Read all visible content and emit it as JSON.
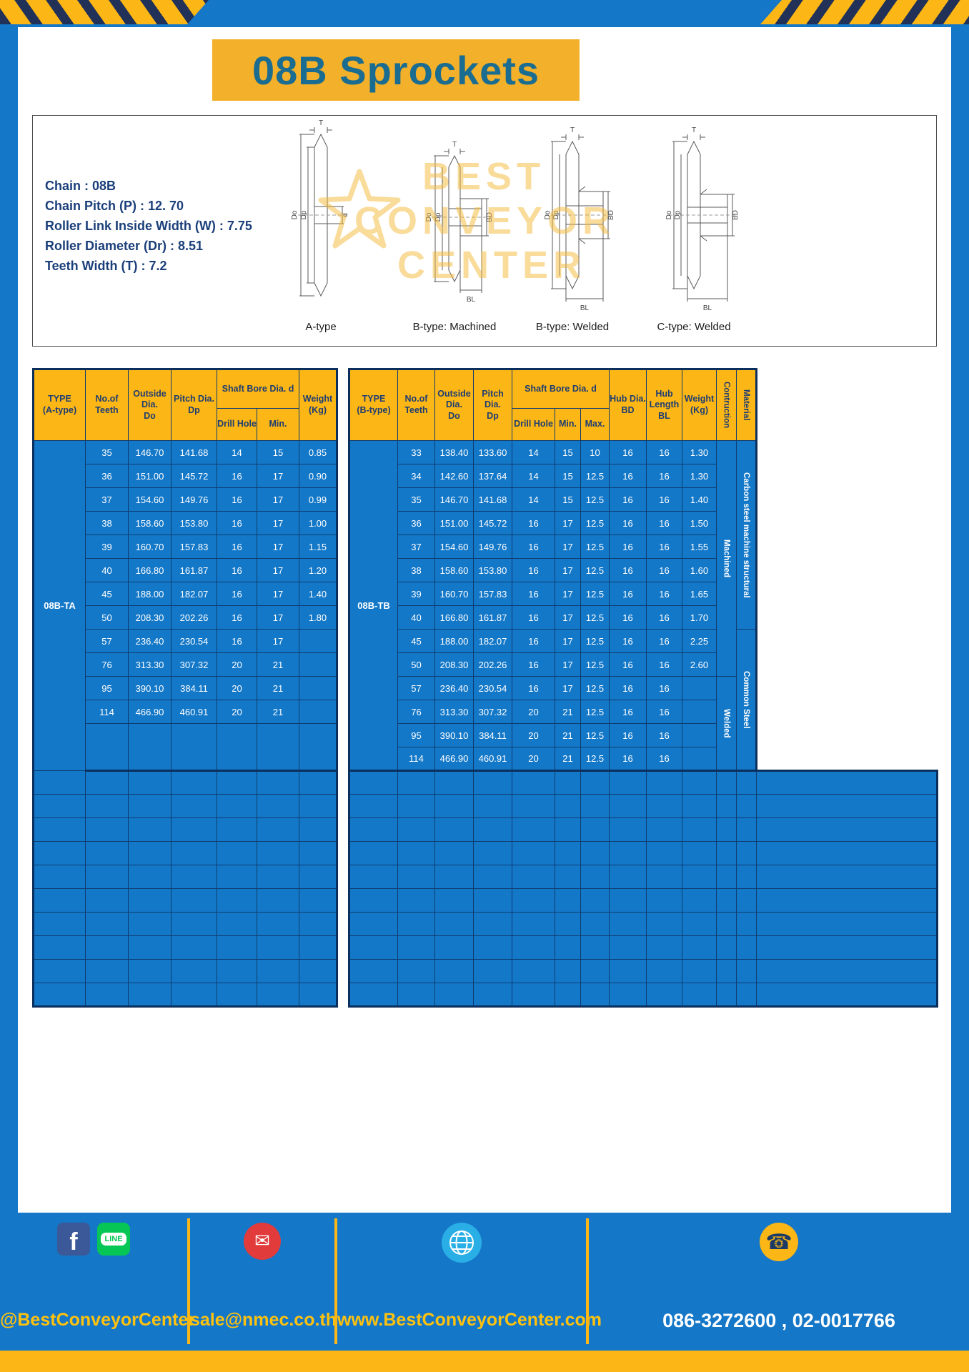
{
  "page": {
    "title": "08B Sprockets"
  },
  "colors": {
    "frame_blue": "#1577c8",
    "table_blue": "#1478c8",
    "yellow": "#fcb615",
    "banner_yellow": "#f3b02a",
    "navy_text": "#1b3f7a",
    "title_teal": "#1a6c90"
  },
  "specs": {
    "lines": [
      "Chain : 08B",
      "Chain Pitch (P) : 12. 70",
      "Roller Link Inside Width (W) : 7.75",
      "Roller Diameter (Dr) : 8.51",
      "Teeth Width (T) : 7.2"
    ]
  },
  "diagrams": {
    "captions": [
      "A-type",
      "B-type: Machined",
      "B-type: Welded",
      "C-type: Welded"
    ],
    "labels": {
      "t": "T",
      "do": "Do",
      "dp": "Dp",
      "d": "d",
      "bd": "BD",
      "bl": "BL"
    },
    "watermark": {
      "line1": "BEST",
      "line2": "CONVEYOR",
      "line3": "CENTER"
    }
  },
  "table_a": {
    "header": {
      "type_1": "TYPE",
      "type_2": "(A-type)",
      "teeth_1": "No.of",
      "teeth_2": "Teeth",
      "outside_1": "Outside",
      "outside_2": "Dia.",
      "outside_3": "Do",
      "pitch_1": "Pitch Dia.",
      "pitch_2": "Dp",
      "bore": "Shaft Bore Dia. d",
      "drill": "Drill Hole",
      "min": "Min.",
      "weight_1": "Weight",
      "weight_2": "(Kg)"
    },
    "type_label": "08B-TA",
    "rows": [
      [
        "35",
        "146.70",
        "141.68",
        "14",
        "15",
        "0.85"
      ],
      [
        "36",
        "151.00",
        "145.72",
        "16",
        "17",
        "0.90"
      ],
      [
        "37",
        "154.60",
        "149.76",
        "16",
        "17",
        "0.99"
      ],
      [
        "38",
        "158.60",
        "153.80",
        "16",
        "17",
        "1.00"
      ],
      [
        "39",
        "160.70",
        "157.83",
        "16",
        "17",
        "1.15"
      ],
      [
        "40",
        "166.80",
        "161.87",
        "16",
        "17",
        "1.20"
      ],
      [
        "45",
        "188.00",
        "182.07",
        "16",
        "17",
        "1.40"
      ],
      [
        "50",
        "208.30",
        "202.26",
        "16",
        "17",
        "1.80"
      ],
      [
        "57",
        "236.40",
        "230.54",
        "16",
        "17",
        ""
      ],
      [
        "76",
        "313.30",
        "307.32",
        "20",
        "21",
        ""
      ],
      [
        "95",
        "390.10",
        "384.11",
        "20",
        "21",
        ""
      ],
      [
        "114",
        "466.90",
        "460.91",
        "20",
        "21",
        ""
      ]
    ],
    "empty_rows": 10
  },
  "table_b": {
    "header": {
      "type_1": "TYPE",
      "type_2": "(B-type)",
      "teeth_1": "No.of",
      "teeth_2": "Teeth",
      "outside_1": "Outside",
      "outside_2": "Dia.",
      "outside_3": "Do",
      "pitch_1": "Pitch Dia.",
      "pitch_2": "Dp",
      "bore": "Shaft Bore Dia. d",
      "drill": "Drill Hole",
      "min": "Min.",
      "max": "Max.",
      "hub_dia_1": "Hub Dia.",
      "hub_dia_2": "BD",
      "hub_len_1": "Hub",
      "hub_len_2": "Length",
      "hub_len_3": "BL",
      "weight_1": "Weight",
      "weight_2": "(Kg)",
      "construction": "Contruction",
      "material": "Material"
    },
    "type_label": "08B-TB",
    "rows": [
      [
        "33",
        "138.40",
        "133.60",
        "14",
        "15",
        "10",
        "16",
        "16",
        "1.30"
      ],
      [
        "34",
        "142.60",
        "137.64",
        "14",
        "15",
        "12.5",
        "16",
        "16",
        "1.30"
      ],
      [
        "35",
        "146.70",
        "141.68",
        "14",
        "15",
        "12.5",
        "16",
        "16",
        "1.40"
      ],
      [
        "36",
        "151.00",
        "145.72",
        "16",
        "17",
        "12.5",
        "16",
        "16",
        "1.50"
      ],
      [
        "37",
        "154.60",
        "149.76",
        "16",
        "17",
        "12.5",
        "16",
        "16",
        "1.55"
      ],
      [
        "38",
        "158.60",
        "153.80",
        "16",
        "17",
        "12.5",
        "16",
        "16",
        "1.60"
      ],
      [
        "39",
        "160.70",
        "157.83",
        "16",
        "17",
        "12.5",
        "16",
        "16",
        "1.65"
      ],
      [
        "40",
        "166.80",
        "161.87",
        "16",
        "17",
        "12.5",
        "16",
        "16",
        "1.70"
      ],
      [
        "45",
        "188.00",
        "182.07",
        "16",
        "17",
        "12.5",
        "16",
        "16",
        "2.25"
      ],
      [
        "50",
        "208.30",
        "202.26",
        "16",
        "17",
        "12.5",
        "16",
        "16",
        "2.60"
      ],
      [
        "57",
        "236.40",
        "230.54",
        "16",
        "17",
        "12.5",
        "16",
        "16",
        ""
      ],
      [
        "76",
        "313.30",
        "307.32",
        "20",
        "21",
        "12.5",
        "16",
        "16",
        ""
      ],
      [
        "95",
        "390.10",
        "384.11",
        "20",
        "21",
        "12.5",
        "16",
        "16",
        ""
      ],
      [
        "114",
        "466.90",
        "460.91",
        "20",
        "21",
        "12.5",
        "16",
        "16",
        ""
      ]
    ],
    "construction_groups": [
      {
        "label": "Machined",
        "rows": 10
      },
      {
        "label": "Welded",
        "rows": 4
      }
    ],
    "material_groups": [
      {
        "label": "Carbon steel  machine structural",
        "rows": 8
      },
      {
        "label": "Common  Steel",
        "rows": 6
      }
    ],
    "empty_rows": 10
  },
  "footer": {
    "social_handle": "@BestConveyorCenter",
    "email": "sale@nmec.co.th",
    "website": "www.BestConveyorCenter.com",
    "phone": "086-3272600 , 02-0017766",
    "facebook_letter": "f",
    "line_label": "LINE",
    "mail_glyph": "✉",
    "phone_glyph": "☎"
  }
}
